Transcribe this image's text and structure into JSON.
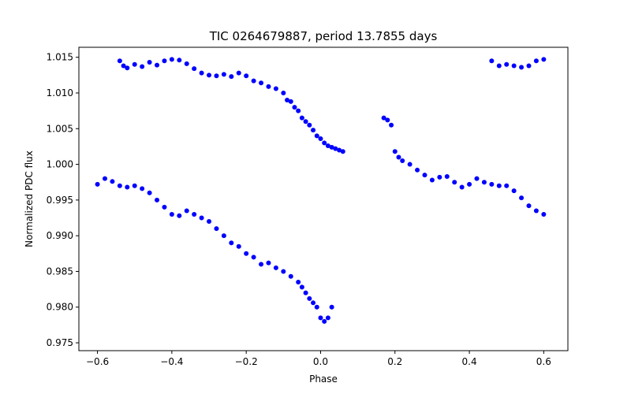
{
  "chart_data": {
    "type": "scatter",
    "title": "TIC 0264679887, period 13.7855 days",
    "xlabel": "Phase",
    "ylabel": "Normalized PDC flux",
    "xlim": [
      -0.65,
      0.665
    ],
    "ylim": [
      0.9739,
      1.0164
    ],
    "x_ticks": [
      -0.6,
      -0.4,
      -0.2,
      0.0,
      0.2,
      0.4,
      0.6
    ],
    "x_tick_labels": [
      "−0.6",
      "−0.4",
      "−0.2",
      "0.0",
      "0.2",
      "0.4",
      "0.6"
    ],
    "y_ticks": [
      0.975,
      0.98,
      0.985,
      0.99,
      0.995,
      1.0,
      1.005,
      1.01,
      1.015
    ],
    "y_tick_labels": [
      "0.975",
      "0.980",
      "0.985",
      "0.990",
      "0.995",
      "1.000",
      "1.005",
      "1.010",
      "1.015"
    ],
    "grid": false,
    "marker_color": "#0000ff",
    "series": [
      {
        "x": [
          -0.54,
          -0.53,
          -0.52,
          -0.5,
          -0.48,
          -0.46,
          -0.44,
          -0.42,
          -0.4,
          -0.38,
          -0.36,
          -0.34,
          -0.32,
          -0.3,
          -0.28,
          -0.26,
          -0.24,
          -0.22,
          -0.2,
          -0.18,
          -0.16,
          -0.14,
          -0.12,
          -0.1,
          -0.09,
          -0.08,
          -0.07,
          -0.06,
          -0.05,
          -0.04,
          -0.03,
          -0.02,
          -0.01,
          0.0,
          0.01,
          0.02,
          0.03,
          0.04,
          0.05,
          0.06
        ],
        "y": [
          1.0145,
          1.0138,
          1.0135,
          1.014,
          1.0137,
          1.0143,
          1.0139,
          1.0145,
          1.0147,
          1.0146,
          1.0141,
          1.0134,
          1.0128,
          1.0125,
          1.0124,
          1.0126,
          1.0123,
          1.0128,
          1.0124,
          1.0117,
          1.0114,
          1.0109,
          1.0106,
          1.01,
          1.009,
          1.0088,
          1.008,
          1.0075,
          1.0065,
          1.006,
          1.0055,
          1.0048,
          1.004,
          1.0036,
          1.003,
          1.0026,
          1.0024,
          1.0022,
          1.002,
          1.0018
        ]
      },
      {
        "x": [
          -0.6,
          -0.58,
          -0.56,
          -0.54,
          -0.52,
          -0.5,
          -0.48,
          -0.46,
          -0.44,
          -0.42,
          -0.4,
          -0.38,
          -0.36,
          -0.34,
          -0.32,
          -0.3,
          -0.28,
          -0.26,
          -0.24,
          -0.22,
          -0.2,
          -0.18,
          -0.16,
          -0.14,
          -0.12,
          -0.1,
          -0.08,
          -0.06,
          -0.05,
          -0.04,
          -0.03,
          -0.02,
          -0.01,
          0.0,
          0.01,
          0.02,
          0.03
        ],
        "y": [
          0.9972,
          0.998,
          0.9976,
          0.997,
          0.9968,
          0.997,
          0.9966,
          0.996,
          0.995,
          0.994,
          0.993,
          0.9928,
          0.9935,
          0.993,
          0.9925,
          0.992,
          0.991,
          0.99,
          0.989,
          0.9885,
          0.9875,
          0.987,
          0.986,
          0.9862,
          0.9855,
          0.985,
          0.9843,
          0.9835,
          0.9828,
          0.982,
          0.9812,
          0.9806,
          0.98,
          0.9785,
          0.978,
          0.9785,
          0.98
        ]
      },
      {
        "x": [
          0.17,
          0.18,
          0.19,
          0.2,
          0.21,
          0.22,
          0.24,
          0.26,
          0.28,
          0.3,
          0.32,
          0.34,
          0.36,
          0.38,
          0.4,
          0.42,
          0.44,
          0.46,
          0.48,
          0.5,
          0.52,
          0.54,
          0.56,
          0.58,
          0.6
        ],
        "y": [
          1.0065,
          1.0062,
          1.0055,
          1.0018,
          1.001,
          1.0005,
          1.0,
          0.9992,
          0.9985,
          0.9978,
          0.9982,
          0.9983,
          0.9975,
          0.9968,
          0.9972,
          0.998,
          0.9975,
          0.9972,
          0.997,
          0.997,
          0.9963,
          0.9953,
          0.9942,
          0.9935,
          0.993
        ]
      },
      {
        "x": [
          0.46,
          0.48,
          0.5,
          0.52,
          0.54,
          0.56,
          0.58,
          0.6
        ],
        "y": [
          1.0145,
          1.0138,
          1.014,
          1.0138,
          1.0136,
          1.0138,
          1.0145,
          1.0147
        ]
      }
    ]
  }
}
